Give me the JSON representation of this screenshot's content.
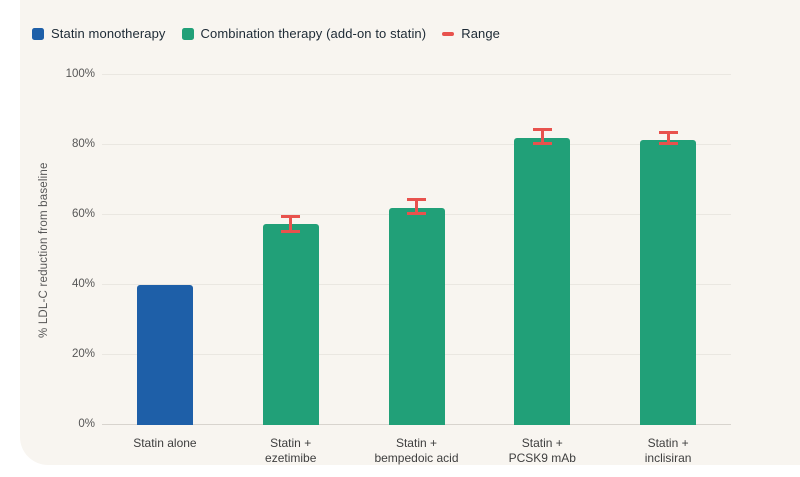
{
  "colors": {
    "page_background": "#ffffff",
    "panel_background": "#f8f5f0",
    "statin_blue": "#1e5fa8",
    "combo_green": "#21a078",
    "range_red": "#e8524d",
    "gridline": "#eae7e1",
    "baseline": "#d8d4ce",
    "legend_text": "#1d2a35",
    "axis_text": "#565656"
  },
  "legend": {
    "items": [
      {
        "label": "Statin monotherapy",
        "swatch": "blue-square"
      },
      {
        "label": "Combination therapy (add-on to statin)",
        "swatch": "green-square"
      },
      {
        "label": "Range",
        "swatch": "red-dash"
      }
    ]
  },
  "chart_data": {
    "type": "bar",
    "title": "",
    "xlabel": "",
    "ylabel": "% LDL-C reduction from baseline",
    "ylim": [
      0,
      100
    ],
    "ytick_step": 20,
    "ytick_suffix": "%",
    "grid": "horizontal",
    "legend_position": "top-left",
    "bars": [
      {
        "label_lines": [
          "Statin alone"
        ],
        "value": 40,
        "series": "statin",
        "range": null
      },
      {
        "label_lines": [
          "Statin +",
          "ezetimibe"
        ],
        "value": 57.5,
        "series": "combo",
        "range": [
          55,
          60
        ]
      },
      {
        "label_lines": [
          "Statin +",
          "bempedoic acid"
        ],
        "value": 62,
        "series": "combo",
        "range": [
          60,
          65
        ]
      },
      {
        "label_lines": [
          "Statin +",
          "PCSK9 mAb"
        ],
        "value": 82,
        "series": "combo",
        "range": [
          80,
          85
        ]
      },
      {
        "label_lines": [
          "Statin +",
          "inclisiran"
        ],
        "value": 81.5,
        "series": "combo",
        "range": [
          80,
          84
        ]
      }
    ],
    "series_colors": {
      "statin": "#1e5fa8",
      "combo": "#21a078"
    },
    "range_color": "#e8524d"
  }
}
